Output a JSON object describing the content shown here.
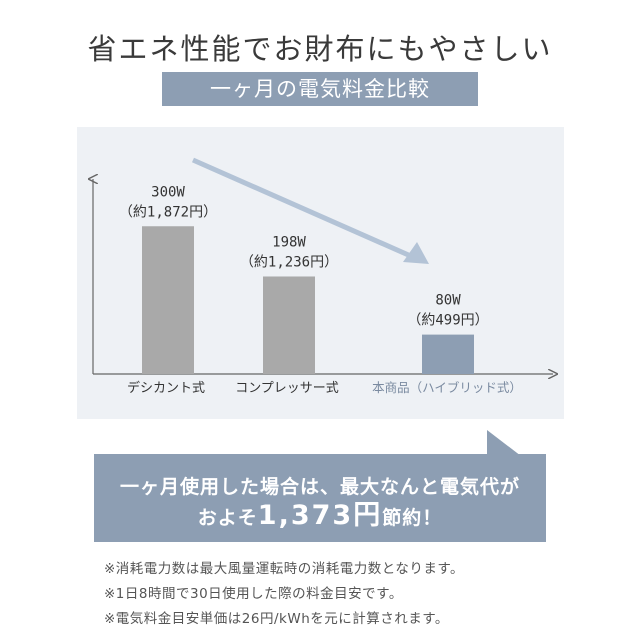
{
  "headline": "省エネ性能でお財布にもやさしい",
  "subtitle": "一ヶ月の電気料金比較",
  "chart_data": {
    "type": "bar",
    "categories": [
      "デシカント式",
      "コンプレッサー式",
      "本商品（ハイブリッド式）"
    ],
    "values": [
      300,
      198,
      80
    ],
    "unit": "W",
    "value_labels": [
      "300W",
      "198W",
      "80W"
    ],
    "price_labels": [
      "（約1,872円）",
      "（約1,236円）",
      "（約499円）"
    ],
    "ylim": [
      0,
      400
    ],
    "grid": false,
    "bar_color": "#a9a9a9",
    "bar_highlight_color": "#8d9eb3",
    "highlight_label_color": "#7a8aa0",
    "trend_arrow_color": "#b3c3d6"
  },
  "callout": {
    "line1": "一ヶ月使用した場合は、最大なんと電気代が",
    "line2_prefix": "およそ",
    "line2_amount": "1,373円",
    "line2_suffix": "節約！"
  },
  "notes": [
    "※消耗電力数は最大風量運転時の消耗電力数となります。",
    "※1日8時間で30日使用した際の料金目安です。",
    "※電気料金目安単価は26円/kWhを元に計算されます。"
  ]
}
